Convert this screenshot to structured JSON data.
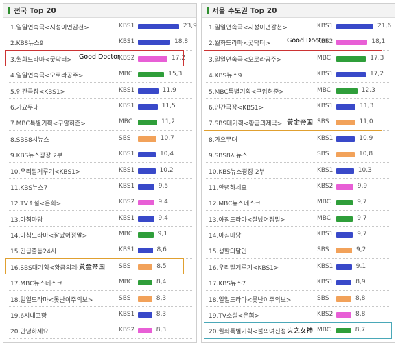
{
  "colors": {
    "KBS1": "#3949c9",
    "KBS2": "#e85fd6",
    "MBC": "#2f9e3a",
    "SBS": "#f2a25a",
    "hl_red": "#cc3333",
    "hl_orange": "#e0a030",
    "hl_teal": "#4aa8b8"
  },
  "panels": [
    {
      "title": "전국 Top 20",
      "rows": [
        {
          "name": "1.일일연속극<지성이면감천>",
          "ch": "KBS1",
          "v": 23.9,
          "val": "23,9"
        },
        {
          "name": "2.KBS뉴스9",
          "ch": "KBS1",
          "v": 18.8,
          "val": "18,8"
        },
        {
          "name": "3.월화드라마<굿닥터>",
          "extra": "Good Doctor",
          "ch": "KBS2",
          "v": 17.2,
          "val": "17,2"
        },
        {
          "name": "4.일일연속극<오로라공주>",
          "ch": "MBC",
          "v": 15.3,
          "val": "15,3"
        },
        {
          "name": "5.인간극장<KBS1>",
          "ch": "KBS1",
          "v": 11.9,
          "val": "11,9"
        },
        {
          "name": "6.가요무대",
          "ch": "KBS1",
          "v": 11.5,
          "val": "11,5"
        },
        {
          "name": "7.MBC특별기획<구암허준>",
          "ch": "MBC",
          "v": 11.2,
          "val": "11,2"
        },
        {
          "name": "8.SBS8시뉴스",
          "ch": "SBS",
          "v": 10.7,
          "val": "10,7"
        },
        {
          "name": "9.KBS뉴스광장 2부",
          "ch": "KBS1",
          "v": 10.4,
          "val": "10,4"
        },
        {
          "name": "10.우리말겨루기<KBS1>",
          "ch": "KBS1",
          "v": 10.2,
          "val": "10,2"
        },
        {
          "name": "11.KBS뉴스7",
          "ch": "KBS1",
          "v": 9.5,
          "val": "9,5"
        },
        {
          "name": "12.TV소설<은희>",
          "ch": "KBS2",
          "v": 9.4,
          "val": "9,4"
        },
        {
          "name": "13.아침마당",
          "ch": "KBS1",
          "v": 9.4,
          "val": "9,4"
        },
        {
          "name": "14.아침드라마<잘났어정말>",
          "ch": "MBC",
          "v": 9.1,
          "val": "9,1"
        },
        {
          "name": "15.긴급출동24시",
          "ch": "KBS1",
          "v": 8.6,
          "val": "8,6"
        },
        {
          "name": "16.SBS대기획<황금의제국>",
          "extra": "黃金帝国",
          "ch": "SBS",
          "v": 8.5,
          "val": "8,5"
        },
        {
          "name": "17.MBC뉴스데스크",
          "ch": "MBC",
          "v": 8.4,
          "val": "8,4"
        },
        {
          "name": "18.일일드라마<못난이주의보>",
          "ch": "SBS",
          "v": 8.3,
          "val": "8,3"
        },
        {
          "name": "19.6시내고향",
          "ch": "KBS1",
          "v": 8.3,
          "val": "8,3"
        },
        {
          "name": "20.안녕하세요",
          "ch": "KBS2",
          "v": 8.3,
          "val": "8,3"
        }
      ]
    },
    {
      "title": "서울 수도권 Top 20",
      "rows": [
        {
          "name": "1.일일연속극<지성이면감천>",
          "ch": "KBS1",
          "v": 21.6,
          "val": "21,6"
        },
        {
          "name": "2.월화드라마<굿닥터>",
          "extra": "Good Doctor",
          "ch": "KBS2",
          "v": 18.1,
          "val": "18,1"
        },
        {
          "name": "3.일일연속극<오로라공주>",
          "ch": "MBC",
          "v": 17.3,
          "val": "17,3"
        },
        {
          "name": "4.KBS뉴스9",
          "ch": "KBS1",
          "v": 17.2,
          "val": "17,2"
        },
        {
          "name": "5.MBC특별기획<구암허준>",
          "ch": "MBC",
          "v": 12.3,
          "val": "12,3"
        },
        {
          "name": "6.인간극장<KBS1>",
          "ch": "KBS1",
          "v": 11.3,
          "val": "11,3"
        },
        {
          "name": "7.SBS대기획<황금의제국>",
          "extra": "黃金帝国",
          "ch": "SBS",
          "v": 11.0,
          "val": "11,0"
        },
        {
          "name": "8.가요무대",
          "ch": "KBS1",
          "v": 10.9,
          "val": "10,9"
        },
        {
          "name": "9.SBS8시뉴스",
          "ch": "SBS",
          "v": 10.8,
          "val": "10,8"
        },
        {
          "name": "10.KBS뉴스광장 2부",
          "ch": "KBS1",
          "v": 10.3,
          "val": "10,3"
        },
        {
          "name": "11.안녕하세요",
          "ch": "KBS2",
          "v": 9.9,
          "val": "9,9"
        },
        {
          "name": "12.MBC뉴스데스크",
          "ch": "MBC",
          "v": 9.7,
          "val": "9,7"
        },
        {
          "name": "13.아침드라마<잘났어정말>",
          "ch": "MBC",
          "v": 9.7,
          "val": "9,7"
        },
        {
          "name": "14.아침마당",
          "ch": "KBS1",
          "v": 9.7,
          "val": "9,7"
        },
        {
          "name": "15.생활의달인",
          "ch": "SBS",
          "v": 9.2,
          "val": "9,2"
        },
        {
          "name": "16.우리말겨루기<KBS1>",
          "ch": "KBS1",
          "v": 9.1,
          "val": "9,1"
        },
        {
          "name": "17.KBS뉴스7",
          "ch": "KBS1",
          "v": 8.9,
          "val": "8,9"
        },
        {
          "name": "18.일일드라마<못난이주의보>",
          "ch": "SBS",
          "v": 8.8,
          "val": "8,8"
        },
        {
          "name": "19.TV소설<은희>",
          "ch": "KBS2",
          "v": 8.8,
          "val": "8,8"
        },
        {
          "name": "20.월화특별기획<불의여신정이>",
          "extra": "火之女神",
          "ch": "MBC",
          "v": 8.7,
          "val": "8,7"
        }
      ]
    }
  ],
  "highlights": [
    {
      "panel": 0,
      "row": 2,
      "color": "hl_red"
    },
    {
      "panel": 0,
      "row": 15,
      "color": "hl_orange"
    },
    {
      "panel": 1,
      "row": 1,
      "color": "hl_red"
    },
    {
      "panel": 1,
      "row": 6,
      "color": "hl_orange"
    },
    {
      "panel": 1,
      "row": 19,
      "color": "hl_teal"
    }
  ],
  "chart_data": [
    {
      "type": "bar",
      "title": "전국 Top 20",
      "categories": [
        "1.일일연속극<지성이면감천>",
        "2.KBS뉴스9",
        "3.월화드라마<굿닥터>",
        "4.일일연속극<오로라공주>",
        "5.인간극장<KBS1>",
        "6.가요무대",
        "7.MBC특별기획<구암허준>",
        "8.SBS8시뉴스",
        "9.KBS뉴스광장 2부",
        "10.우리말겨루기<KBS1>",
        "11.KBS뉴스7",
        "12.TV소설<은희>",
        "13.아침마당",
        "14.아침드라마<잘났어정말>",
        "15.긴급출동24시",
        "16.SBS대기획<황금의제국>",
        "17.MBC뉴스데스크",
        "18.일일드라마<못난이주의보>",
        "19.6시내고향",
        "20.안녕하세요"
      ],
      "values": [
        23.9,
        18.8,
        17.2,
        15.3,
        11.9,
        11.5,
        11.2,
        10.7,
        10.4,
        10.2,
        9.5,
        9.4,
        9.4,
        9.1,
        8.6,
        8.5,
        8.4,
        8.3,
        8.3,
        8.3
      ]
    },
    {
      "type": "bar",
      "title": "서울 수도권 Top 20",
      "categories": [
        "1.일일연속극<지성이면감천>",
        "2.월화드라마<굿닥터>",
        "3.일일연속극<오로라공주>",
        "4.KBS뉴스9",
        "5.MBC특별기획<구암허준>",
        "6.인간극장<KBS1>",
        "7.SBS대기획<황금의제국>",
        "8.가요무대",
        "9.SBS8시뉴스",
        "10.KBS뉴스광장 2부",
        "11.안녕하세요",
        "12.MBC뉴스데스크",
        "13.아침드라마<잘났어정말>",
        "14.아침마당",
        "15.생활의달인",
        "16.우리말겨루기<KBS1>",
        "17.KBS뉴스7",
        "18.일일드라마<못난이주의보>",
        "19.TV소설<은희>",
        "20.월화특별기획<불의여신정이>"
      ],
      "values": [
        21.6,
        18.1,
        17.3,
        17.2,
        12.3,
        11.3,
        11.0,
        10.9,
        10.8,
        10.3,
        9.9,
        9.7,
        9.7,
        9.7,
        9.2,
        9.1,
        8.9,
        8.8,
        8.8,
        8.7
      ]
    }
  ]
}
